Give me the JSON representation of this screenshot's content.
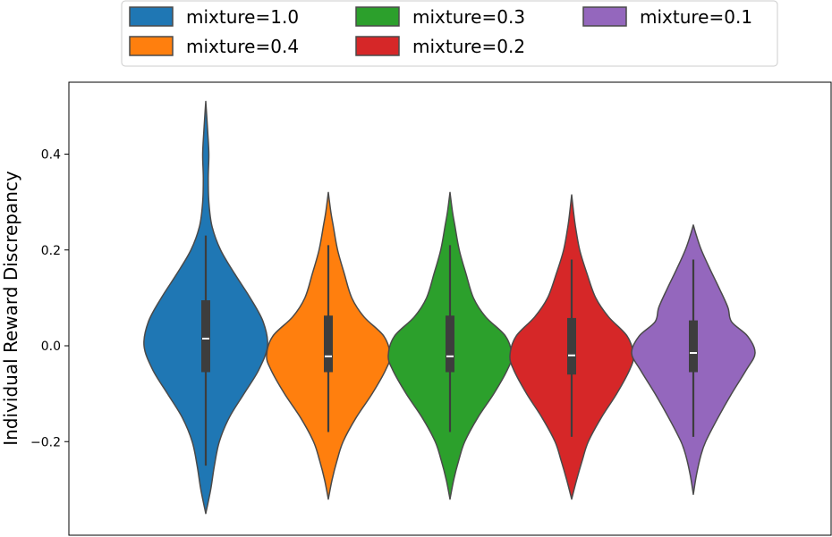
{
  "chart_data": {
    "type": "violin",
    "ylabel": "Individual Reward Discrepancy",
    "xlabel": "",
    "title": "",
    "ylim": [
      -0.37,
      0.52
    ],
    "yticks": [
      -0.2,
      0.0,
      0.2,
      0.4
    ],
    "ytick_labels": [
      "−0.2",
      "0.0",
      "0.2",
      "0.4"
    ],
    "grid": false,
    "legend_position": "top-center",
    "legend_entries": [
      "mixture=1.0",
      "mixture=0.4",
      "mixture=0.3",
      "mixture=0.2",
      "mixture=0.1"
    ],
    "series": [
      {
        "name": "mixture=1.0",
        "color": "#1f77b4",
        "median": 0.015,
        "q1": -0.055,
        "q3": 0.095,
        "whisker_low": -0.25,
        "whisker_high": 0.23,
        "min": -0.35,
        "max": 0.51,
        "density_y": [
          -0.35,
          -0.3,
          -0.25,
          -0.2,
          -0.15,
          -0.1,
          -0.05,
          0.0,
          0.05,
          0.1,
          0.15,
          0.2,
          0.25,
          0.3,
          0.35,
          0.4,
          0.45,
          0.51
        ],
        "density_w": [
          0.0,
          0.08,
          0.14,
          0.22,
          0.38,
          0.62,
          0.86,
          1.0,
          0.93,
          0.72,
          0.47,
          0.24,
          0.1,
          0.05,
          0.04,
          0.05,
          0.03,
          0.0
        ]
      },
      {
        "name": "mixture=0.4",
        "color": "#ff7f0e",
        "median": -0.022,
        "q1": -0.055,
        "q3": 0.063,
        "whisker_low": -0.18,
        "whisker_high": 0.21,
        "min": -0.32,
        "max": 0.32,
        "density_y": [
          -0.32,
          -0.28,
          -0.24,
          -0.2,
          -0.15,
          -0.1,
          -0.05,
          -0.02,
          0.02,
          0.06,
          0.1,
          0.15,
          0.2,
          0.25,
          0.28,
          0.32
        ],
        "density_w": [
          0.0,
          0.06,
          0.14,
          0.24,
          0.45,
          0.71,
          0.93,
          1.0,
          0.9,
          0.58,
          0.38,
          0.26,
          0.15,
          0.08,
          0.04,
          0.0
        ]
      },
      {
        "name": "mixture=0.3",
        "color": "#2ca02c",
        "median": -0.022,
        "q1": -0.055,
        "q3": 0.063,
        "whisker_low": -0.18,
        "whisker_high": 0.21,
        "min": -0.32,
        "max": 0.32,
        "density_y": [
          -0.32,
          -0.28,
          -0.24,
          -0.2,
          -0.15,
          -0.1,
          -0.05,
          -0.02,
          0.02,
          0.06,
          0.1,
          0.15,
          0.2,
          0.25,
          0.28,
          0.32
        ],
        "density_w": [
          0.0,
          0.06,
          0.14,
          0.24,
          0.45,
          0.71,
          0.93,
          1.0,
          0.9,
          0.58,
          0.38,
          0.26,
          0.15,
          0.08,
          0.04,
          0.0
        ]
      },
      {
        "name": "mixture=0.2",
        "color": "#d62728",
        "median": -0.02,
        "q1": -0.06,
        "q3": 0.058,
        "whisker_low": -0.19,
        "whisker_high": 0.18,
        "min": -0.32,
        "max": 0.315,
        "density_y": [
          -0.32,
          -0.28,
          -0.24,
          -0.2,
          -0.15,
          -0.1,
          -0.05,
          -0.02,
          0.02,
          0.06,
          0.1,
          0.15,
          0.2,
          0.25,
          0.28,
          0.315
        ],
        "density_w": [
          0.0,
          0.08,
          0.17,
          0.27,
          0.48,
          0.73,
          0.94,
          1.0,
          0.9,
          0.6,
          0.39,
          0.25,
          0.13,
          0.06,
          0.03,
          0.0
        ]
      },
      {
        "name": "mixture=0.1",
        "color": "#9467bd",
        "median": -0.015,
        "q1": -0.055,
        "q3": 0.053,
        "whisker_low": -0.19,
        "whisker_high": 0.18,
        "min": -0.31,
        "max": 0.252,
        "density_y": [
          -0.31,
          -0.27,
          -0.23,
          -0.2,
          -0.15,
          -0.1,
          -0.05,
          -0.015,
          0.02,
          0.05,
          0.08,
          0.12,
          0.16,
          0.2,
          0.23,
          0.252
        ],
        "density_w": [
          0.0,
          0.05,
          0.12,
          0.2,
          0.4,
          0.62,
          0.86,
          1.0,
          0.88,
          0.62,
          0.56,
          0.42,
          0.27,
          0.13,
          0.05,
          0.0
        ]
      }
    ]
  }
}
